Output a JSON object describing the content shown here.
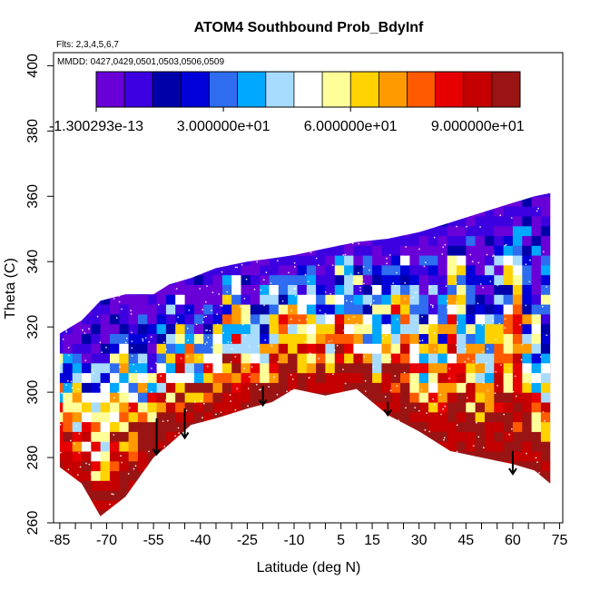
{
  "chart_data": {
    "type": "heatmap",
    "title": "ATOM4 Southbound Prob_BdyInf",
    "annotations": {
      "flights": "Flts: 2,3,4,5,6,7",
      "dates": "MMDD: 0427,0429,0501,0503,0506,0509"
    },
    "xlabel": "Latitude (deg N)",
    "ylabel": "Theta (C)",
    "xlim": [
      -87,
      76
    ],
    "ylim": [
      260,
      404
    ],
    "xticks": [
      -85,
      -70,
      -55,
      -40,
      -25,
      -10,
      5,
      15,
      30,
      45,
      60,
      75
    ],
    "xminor_step": 5,
    "yticks": [
      260,
      280,
      300,
      320,
      340,
      360,
      380,
      400
    ],
    "grid": false,
    "colorbar": {
      "placement": "top-inside",
      "range": [
        0,
        100
      ],
      "colors": [
        "#6a00d8",
        "#3c00e0",
        "#0000a8",
        "#0000d8",
        "#2e6cf0",
        "#00a8ff",
        "#a8dcff",
        "#ffffff",
        "#ffff9a",
        "#ffd200",
        "#ff9a00",
        "#ff5a00",
        "#e60000",
        "#c40000",
        "#9a1414"
      ],
      "tick_labels": [
        "-1.300293e-13",
        "3.000000e+01",
        "6.000000e+01",
        "9.000000e+01"
      ],
      "tick_values": [
        0,
        30,
        60,
        90
      ]
    },
    "boundary_profile": {
      "lat": [
        -85,
        -78,
        -72,
        -64,
        -55,
        -50,
        -43,
        -35,
        -25,
        -17,
        -10,
        0,
        10,
        20,
        30,
        40,
        50,
        60,
        67,
        72
      ],
      "theta": [
        277,
        272,
        262,
        268,
        280,
        284,
        290,
        292,
        295,
        297,
        301,
        299,
        301,
        293,
        288,
        282,
        280,
        278,
        276,
        272
      ]
    },
    "top_profile": {
      "lat": [
        -85,
        -78,
        -72,
        -64,
        -55,
        -50,
        -43,
        -35,
        -25,
        -17,
        -10,
        0,
        10,
        20,
        30,
        40,
        50,
        60,
        67,
        72
      ],
      "theta": [
        318,
        322,
        328,
        330,
        330,
        333,
        335,
        338,
        340,
        341,
        342,
        344,
        346,
        347,
        349,
        352,
        355,
        358,
        360,
        361
      ]
    },
    "arrows": [
      {
        "lat": -54,
        "theta_top": 292,
        "theta_tip": 281
      },
      {
        "lat": -45,
        "theta_top": 295,
        "theta_tip": 286
      },
      {
        "lat": -20,
        "theta_top": 302,
        "theta_tip": 296
      },
      {
        "lat": 20,
        "theta_top": 297,
        "theta_tip": 293
      },
      {
        "lat": 60,
        "theta_top": 282,
        "theta_tip": 275
      }
    ]
  }
}
